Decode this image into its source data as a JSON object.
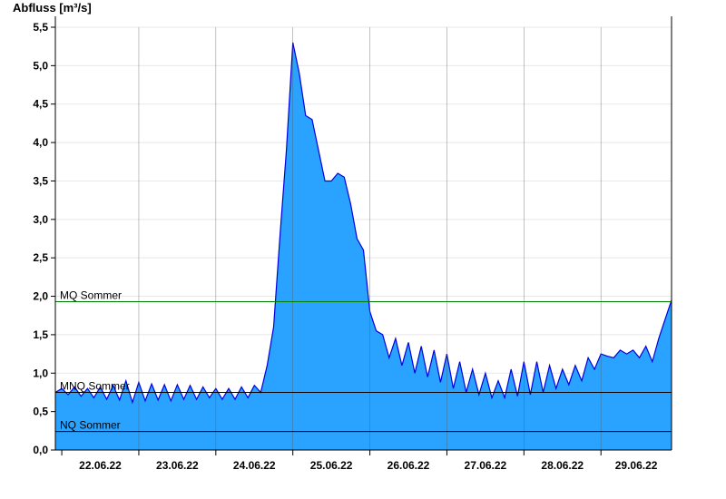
{
  "chart_data": {
    "type": "area",
    "ylabel": "Abfluss [m³/s]",
    "xlabel": "",
    "title": "",
    "ylim": [
      0,
      5.5
    ],
    "yticks": [
      {
        "value": 0.0,
        "label": "0,0"
      },
      {
        "value": 0.5,
        "label": "0,5"
      },
      {
        "value": 1.0,
        "label": "1,0"
      },
      {
        "value": 1.5,
        "label": "1,5"
      },
      {
        "value": 2.0,
        "label": "2,0"
      },
      {
        "value": 2.5,
        "label": "2,5"
      },
      {
        "value": 3.0,
        "label": "3,0"
      },
      {
        "value": 3.5,
        "label": "3,5"
      },
      {
        "value": 4.0,
        "label": "4,0"
      },
      {
        "value": 4.5,
        "label": "4,5"
      },
      {
        "value": 5.0,
        "label": "5,0"
      },
      {
        "value": 5.5,
        "label": "5,5"
      }
    ],
    "xlim": [
      "21.06.22 22:00",
      "29.06.22 22:00"
    ],
    "xticks": [
      "22.06.22",
      "23.06.22",
      "24.06.22",
      "25.06.22",
      "26.06.22",
      "27.06.22",
      "28.06.22",
      "29.06.22"
    ],
    "series": [
      {
        "x": [
          "21.06.22 22:00",
          "22.06.22 00:00",
          "22.06.22 02:00",
          "22.06.22 04:00",
          "22.06.22 06:00",
          "22.06.22 08:00",
          "22.06.22 10:00",
          "22.06.22 12:00",
          "22.06.22 14:00",
          "22.06.22 16:00",
          "22.06.22 18:00",
          "22.06.22 20:00",
          "22.06.22 22:00",
          "23.06.22 00:00",
          "23.06.22 02:00",
          "23.06.22 04:00",
          "23.06.22 06:00",
          "23.06.22 08:00",
          "23.06.22 10:00",
          "23.06.22 12:00",
          "23.06.22 14:00",
          "23.06.22 16:00",
          "23.06.22 18:00",
          "23.06.22 20:00",
          "23.06.22 22:00",
          "24.06.22 00:00",
          "24.06.22 02:00",
          "24.06.22 04:00",
          "24.06.22 06:00",
          "24.06.22 08:00",
          "24.06.22 10:00",
          "24.06.22 12:00",
          "24.06.22 14:00",
          "24.06.22 16:00",
          "24.06.22 18:00",
          "24.06.22 20:00",
          "24.06.22 22:00",
          "25.06.22 00:00",
          "25.06.22 02:00",
          "25.06.22 04:00",
          "25.06.22 06:00",
          "25.06.22 08:00",
          "25.06.22 10:00",
          "25.06.22 12:00",
          "25.06.22 14:00",
          "25.06.22 16:00",
          "25.06.22 18:00",
          "25.06.22 20:00",
          "25.06.22 22:00",
          "26.06.22 00:00",
          "26.06.22 02:00",
          "26.06.22 04:00",
          "26.06.22 06:00",
          "26.06.22 08:00",
          "26.06.22 10:00",
          "26.06.22 12:00",
          "26.06.22 14:00",
          "26.06.22 16:00",
          "26.06.22 18:00",
          "26.06.22 20:00",
          "26.06.22 22:00",
          "27.06.22 00:00",
          "27.06.22 02:00",
          "27.06.22 04:00",
          "27.06.22 06:00",
          "27.06.22 08:00",
          "27.06.22 10:00",
          "27.06.22 12:00",
          "27.06.22 14:00",
          "27.06.22 16:00",
          "27.06.22 18:00",
          "27.06.22 20:00",
          "27.06.22 22:00",
          "28.06.22 00:00",
          "28.06.22 02:00",
          "28.06.22 04:00",
          "28.06.22 06:00",
          "28.06.22 08:00",
          "28.06.22 10:00",
          "28.06.22 12:00",
          "28.06.22 14:00",
          "28.06.22 16:00",
          "28.06.22 18:00",
          "28.06.22 20:00",
          "28.06.22 22:00",
          "29.06.22 00:00",
          "29.06.22 02:00",
          "29.06.22 04:00",
          "29.06.22 06:00",
          "29.06.22 08:00",
          "29.06.22 10:00",
          "29.06.22 12:00",
          "29.06.22 14:00",
          "29.06.22 16:00",
          "29.06.22 18:00",
          "29.06.22 20:00",
          "29.06.22 22:00"
        ],
        "values": [
          0.75,
          0.8,
          0.72,
          0.82,
          0.7,
          0.8,
          0.68,
          0.82,
          0.66,
          0.84,
          0.65,
          0.9,
          0.62,
          0.88,
          0.64,
          0.86,
          0.65,
          0.85,
          0.64,
          0.85,
          0.66,
          0.84,
          0.66,
          0.82,
          0.68,
          0.8,
          0.66,
          0.8,
          0.66,
          0.82,
          0.68,
          0.84,
          0.75,
          1.1,
          1.6,
          2.8,
          3.9,
          5.3,
          4.9,
          4.35,
          4.3,
          3.9,
          3.5,
          3.5,
          3.6,
          3.55,
          3.2,
          2.75,
          2.6,
          1.8,
          1.55,
          1.5,
          1.2,
          1.45,
          1.1,
          1.4,
          1.0,
          1.35,
          0.95,
          1.3,
          0.88,
          1.25,
          0.8,
          1.15,
          0.75,
          1.05,
          0.72,
          1.0,
          0.68,
          0.9,
          0.68,
          1.05,
          0.7,
          1.15,
          0.72,
          1.15,
          0.75,
          1.1,
          0.8,
          1.05,
          0.85,
          1.1,
          0.9,
          1.2,
          1.05,
          1.25,
          1.22,
          1.2,
          1.3,
          1.25,
          1.3,
          1.2,
          1.35,
          1.15,
          1.45,
          1.7,
          1.95
        ]
      }
    ],
    "reference_lines": [
      {
        "name": "MQ Sommer",
        "value": 1.93,
        "color": "#008000"
      },
      {
        "name": "MNQ Sommer",
        "value": 0.75,
        "color": "#000000"
      },
      {
        "name": "NQ Sommer",
        "value": 0.24,
        "color": "#000000"
      }
    ],
    "colors": {
      "fill": "#29a3ff",
      "line": "#0000e0",
      "grid": "#e8e8e8",
      "day_line": "#555555"
    },
    "grid": true
  }
}
